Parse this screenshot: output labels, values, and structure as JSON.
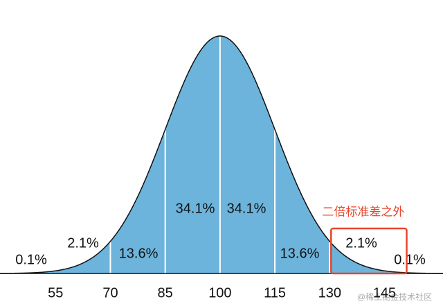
{
  "chart_data": {
    "type": "normal-distribution",
    "values": [
      0.1,
      2.1,
      13.6,
      34.1,
      34.1,
      13.6,
      2.1,
      0.1
    ],
    "value_labels": [
      "0.1%",
      "2.1%",
      "13.6%",
      "34.1%",
      "34.1%",
      "13.6%",
      "2.1%",
      "0.1%"
    ],
    "xticks": [
      55,
      70,
      85,
      100,
      115,
      130,
      145
    ],
    "xlim": [
      39.8,
      161
    ],
    "color": "#6cb4dc",
    "annotation": "二倍标准差之外",
    "highlight_segment": 6,
    "highlight_color": "#e8452a",
    "watermark": "@稀土掘金技术社区"
  }
}
